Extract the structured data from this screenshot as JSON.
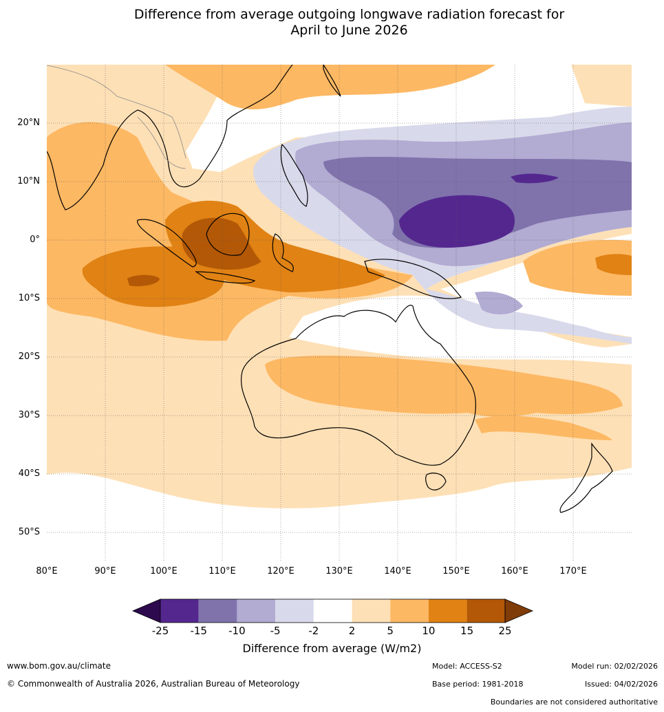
{
  "title_line1": "Difference from average outgoing longwave radiation forecast for",
  "title_line2": "April to June 2026",
  "lat_labels": [
    "20°N",
    "10°N",
    "0°",
    "10°S",
    "20°S",
    "30°S",
    "40°S",
    "50°S"
  ],
  "lon_labels": [
    "80°E",
    "90°E",
    "100°E",
    "110°E",
    "120°E",
    "130°E",
    "140°E",
    "150°E",
    "160°E",
    "170°E"
  ],
  "colorbar": {
    "title": "Difference from average (W/m2)",
    "ticks": [
      "-25",
      "-15",
      "-10",
      "-5",
      "-2",
      "2",
      "5",
      "10",
      "15",
      "25"
    ],
    "colors": [
      "#2d0a4e",
      "#54278f",
      "#8073ac",
      "#b2abd2",
      "#d8daeb",
      "#ffffff",
      "#fee0b6",
      "#fdb863",
      "#e08214",
      "#b35806",
      "#7f3b08"
    ]
  },
  "footer": {
    "website": "www.bom.gov.au/climate",
    "copyright": "© Commonwealth of Australia 2026, Australian Bureau of Meteorology",
    "model": "Model: ACCESS-S2",
    "base_period": "Base period: 1981-2018",
    "model_run": "Model run: 02/02/2026",
    "issued": "Issued: 04/02/2026",
    "disclaimer": "Boundaries are not considered authoritative"
  }
}
